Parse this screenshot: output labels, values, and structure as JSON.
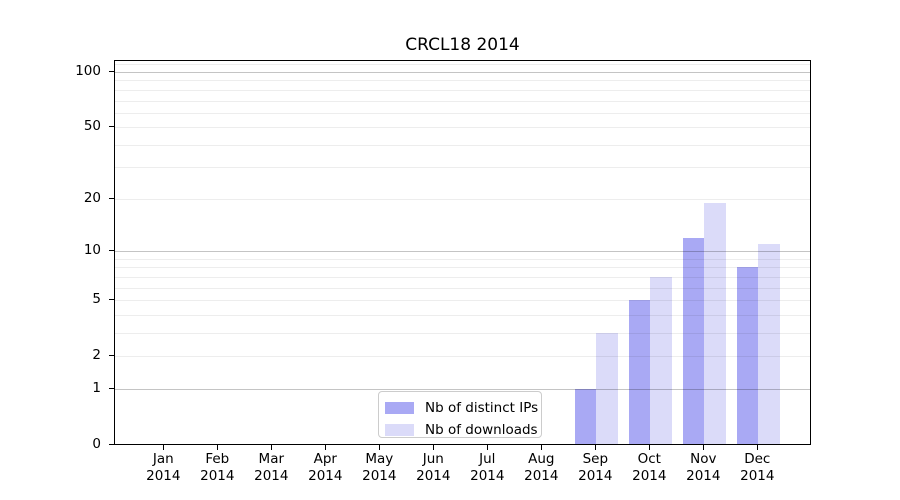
{
  "title": "CRCL18 2014",
  "chart_data": {
    "type": "bar",
    "title": "CRCL18 2014",
    "categories": [
      "Jan",
      "Feb",
      "Mar",
      "Apr",
      "May",
      "Jun",
      "Jul",
      "Aug",
      "Sep",
      "Oct",
      "Nov",
      "Dec"
    ],
    "year_label": "2014",
    "series": [
      {
        "name": "Nb of distinct IPs",
        "color": "#a9a9f4",
        "values": [
          0,
          0,
          0,
          0,
          0,
          0,
          0,
          0,
          1,
          5,
          12,
          8
        ]
      },
      {
        "name": "Nb of downloads",
        "color": "#dbdbf9",
        "values": [
          0,
          0,
          0,
          0,
          0,
          0,
          0,
          0,
          3,
          7,
          19,
          11
        ]
      }
    ],
    "yscale": "log10(value+1)",
    "ylim": [
      0,
      114.7
    ],
    "y_ticks": [
      0,
      1,
      2,
      5,
      10,
      20,
      50,
      100
    ],
    "gridlines": {
      "major": [
        1,
        10,
        100
      ],
      "minor": [
        2,
        3,
        4,
        5,
        6,
        7,
        8,
        9,
        20,
        30,
        40,
        50,
        60,
        70,
        80,
        90,
        110
      ]
    },
    "legend_position": "lower center",
    "grid": "both, drawn above bars",
    "colors": {
      "major_grid": "#c4c4c4",
      "minor_grid": "#ededed",
      "axis": "#000000",
      "text": "#000000",
      "background": "#ffffff",
      "legend_border": "#cccccc"
    }
  }
}
